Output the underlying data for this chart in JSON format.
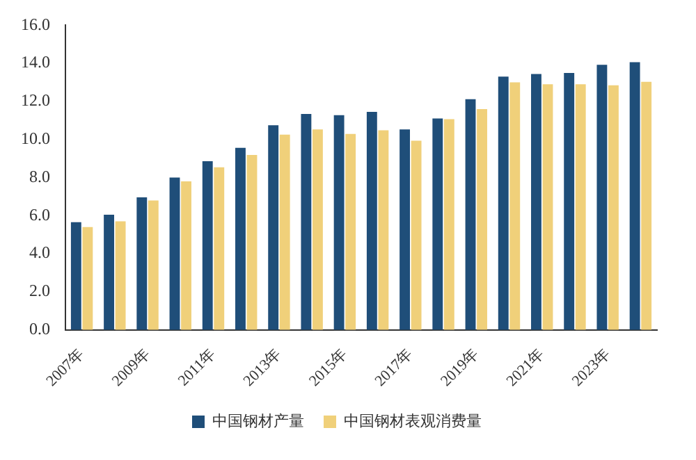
{
  "chart_data": {
    "type": "bar",
    "categories": [
      "2007年",
      null,
      "2009年",
      null,
      "2011年",
      null,
      "2013年",
      null,
      "2015年",
      null,
      "2017年",
      null,
      "2019年",
      null,
      "2021年",
      null,
      "2023年",
      null
    ],
    "series": [
      {
        "name": "中国钢材产量",
        "color": "#1f4e79",
        "values": [
          5.66,
          6.05,
          6.96,
          8.0,
          8.86,
          9.56,
          10.75,
          11.34,
          11.28,
          11.45,
          10.53,
          11.1,
          12.12,
          13.3,
          13.44,
          13.5,
          13.92,
          14.06
        ]
      },
      {
        "name": "中国钢材表观消费量",
        "color": "#f0d07a",
        "values": [
          5.4,
          5.7,
          6.8,
          7.8,
          8.54,
          9.19,
          10.26,
          10.53,
          10.29,
          10.48,
          9.94,
          11.07,
          11.6,
          13.0,
          12.9,
          12.9,
          12.85,
          13.03
        ]
      }
    ],
    "ylim": [
      0,
      16
    ],
    "yticks": [
      {
        "value": 0,
        "label": "0.0"
      },
      {
        "value": 2,
        "label": "2.0"
      },
      {
        "value": 4,
        "label": "4.0"
      },
      {
        "value": 6,
        "label": "6.0"
      },
      {
        "value": 8,
        "label": "8.0"
      },
      {
        "value": 10,
        "label": "10.0"
      },
      {
        "value": 12,
        "label": "12.0"
      },
      {
        "value": 14,
        "label": "14.0"
      },
      {
        "value": 16,
        "label": "16.0"
      }
    ],
    "grid": false,
    "legend": "bottom"
  }
}
